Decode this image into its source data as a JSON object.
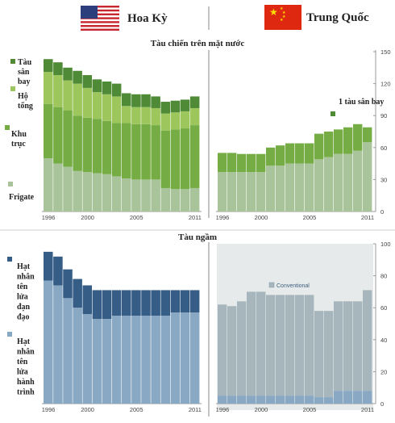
{
  "header": {
    "left_country": "Hoa Kỳ",
    "right_country": "Trung Quốc",
    "left_flag": "us-flag",
    "right_flag": "china-flag"
  },
  "colors": {
    "carrier": "#4f8a36",
    "escort": "#9dc65c",
    "destroyer": "#75ad44",
    "frigate": "#a9c49b",
    "ssbn": "#355d86",
    "ssn": "#88a8c4",
    "conventional": "#a6b6bc"
  },
  "chart_data": [
    {
      "type": "bar",
      "stacked": true,
      "title": "Tàu chiến trên mặt nước",
      "country": "Hoa Kỳ",
      "x_tick_labels": [
        "1996",
        "2000",
        "2005",
        "2011"
      ],
      "x": [
        1996,
        1997,
        1998,
        1999,
        2000,
        2001,
        2002,
        2003,
        2004,
        2005,
        2006,
        2007,
        2008,
        2009,
        2010,
        2011
      ],
      "ylim": [
        0,
        150
      ],
      "series": [
        {
          "name": "Frigate",
          "key": "frigate",
          "values": [
            50,
            45,
            42,
            38,
            37,
            36,
            35,
            33,
            31,
            30,
            30,
            30,
            22,
            21,
            21,
            22
          ]
        },
        {
          "name": "Khu trục",
          "key": "destroyer",
          "values": [
            51,
            53,
            53,
            52,
            51,
            51,
            50,
            50,
            52,
            52,
            52,
            51,
            54,
            56,
            57,
            59
          ]
        },
        {
          "name": "Hộ tống",
          "key": "escort",
          "values": [
            30,
            30,
            28,
            30,
            28,
            25,
            25,
            25,
            16,
            16,
            16,
            16,
            16,
            16,
            16,
            16
          ]
        },
        {
          "name": "Tàu sân bay",
          "key": "carrier",
          "values": [
            12,
            12,
            12,
            12,
            12,
            12,
            12,
            12,
            12,
            12,
            12,
            11,
            11,
            11,
            11,
            11
          ]
        }
      ]
    },
    {
      "type": "bar",
      "stacked": true,
      "country": "Trung Quốc",
      "x_tick_labels": [
        "1996",
        "2000",
        "2005",
        "2011"
      ],
      "x": [
        1996,
        1997,
        1998,
        1999,
        2000,
        2001,
        2002,
        2003,
        2004,
        2005,
        2006,
        2007,
        2008,
        2009,
        2010,
        2011
      ],
      "ylim": [
        0,
        150
      ],
      "y_ticks": [
        0,
        30,
        60,
        90,
        120,
        150
      ],
      "annotation": "1 tàu sân bay",
      "series": [
        {
          "name": "Frigate",
          "key": "frigate",
          "values": [
            37,
            37,
            37,
            37,
            37,
            43,
            43,
            45,
            45,
            45,
            49,
            51,
            54,
            54,
            57,
            65
          ]
        },
        {
          "name": "Khu trục",
          "key": "destroyer",
          "values": [
            18,
            18,
            17,
            17,
            17,
            17,
            19,
            19,
            19,
            19,
            24,
            24,
            23,
            25,
            25,
            14
          ]
        }
      ]
    },
    {
      "type": "bar",
      "stacked": true,
      "title": "Tàu ngầm",
      "country": "Hoa Kỳ",
      "x_tick_labels": [
        "1996",
        "2000",
        "2005",
        "2011"
      ],
      "x": [
        1996,
        1997,
        1998,
        1999,
        2000,
        2001,
        2002,
        2003,
        2004,
        2005,
        2006,
        2007,
        2008,
        2009,
        2010,
        2011
      ],
      "ylim": [
        0,
        100
      ],
      "series": [
        {
          "name": "Hạt nhân tên lửa hành trình",
          "key": "ssn",
          "values": [
            77,
            74,
            66,
            60,
            56,
            53,
            53,
            55,
            55,
            55,
            55,
            55,
            55,
            57,
            57,
            57
          ]
        },
        {
          "name": "Hạt nhân tên lửa đạn đạo",
          "key": "ssbn",
          "values": [
            18,
            18,
            18,
            18,
            18,
            18,
            18,
            16,
            16,
            16,
            16,
            16,
            16,
            14,
            14,
            14
          ]
        }
      ]
    },
    {
      "type": "bar",
      "stacked": true,
      "country": "Trung Quốc",
      "x_tick_labels": [
        "1996",
        "2000",
        "2005",
        "2011"
      ],
      "x": [
        1996,
        1997,
        1998,
        1999,
        2000,
        2001,
        2002,
        2003,
        2004,
        2005,
        2006,
        2007,
        2008,
        2009,
        2010,
        2011
      ],
      "ylim": [
        0,
        100
      ],
      "y_ticks": [
        0,
        20,
        40,
        60,
        80,
        100
      ],
      "series": [
        {
          "name": "Hạt nhân",
          "key": "ssn",
          "values": [
            5,
            5,
            5,
            5,
            5,
            5,
            5,
            5,
            5,
            5,
            4,
            4,
            8,
            8,
            8,
            8
          ]
        },
        {
          "name": "Conventional",
          "key": "conventional",
          "values": [
            57,
            56,
            59,
            65,
            65,
            63,
            63,
            63,
            63,
            63,
            54,
            54,
            56,
            56,
            56,
            63
          ]
        }
      ]
    }
  ]
}
